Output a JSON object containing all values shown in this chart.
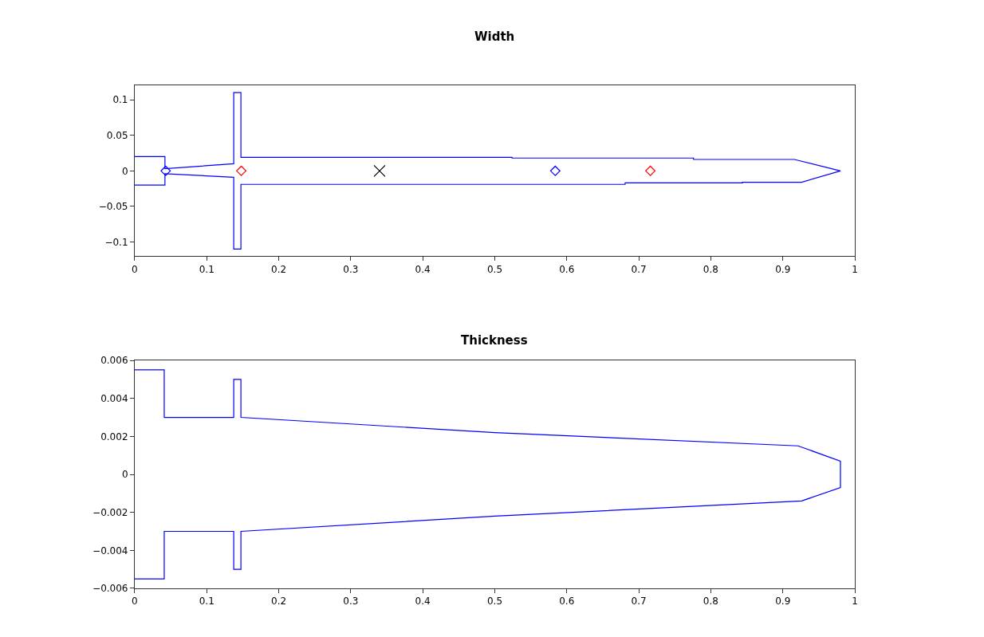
{
  "chart_data": [
    {
      "type": "line",
      "title": "Width",
      "xlim": [
        0,
        1
      ],
      "ylim": [
        -0.12,
        0.12
      ],
      "xticks": [
        0,
        0.1,
        0.2,
        0.3,
        0.4,
        0.5,
        0.6,
        0.7,
        0.8,
        0.9,
        1
      ],
      "yticks": [
        {
          "value": -0.1,
          "label": "−0.1"
        },
        {
          "value": -0.05,
          "label": "−0.05"
        },
        0,
        0.05,
        0.1
      ],
      "series": [
        {
          "color": "#0000ff",
          "marker": "none",
          "line_style": "solid",
          "x": [
            0,
            0.042,
            0.042,
            0.1375,
            0.1375,
            0.1475,
            0.1475,
            0.524,
            0.524,
            0.776,
            0.776,
            0.916,
            0.98,
            0.926,
            0.844,
            0.844,
            0.681,
            0.681,
            0.1475,
            0.1475,
            0.1375,
            0.1375,
            0.042,
            0.042,
            0
          ],
          "values": [
            0.02,
            0.02,
            0.003,
            0.01,
            0.11,
            0.11,
            0.019,
            0.019,
            0.018,
            0.018,
            0.016,
            0.016,
            0,
            -0.016,
            -0.016,
            -0.017,
            -0.017,
            -0.019,
            -0.019,
            -0.11,
            -0.11,
            -0.009,
            -0.004,
            -0.02,
            -0.02
          ]
        },
        {
          "type": "scatter",
          "color": "#0000ff",
          "marker": "diamond",
          "x": [
            0.043,
            0.584
          ],
          "values": [
            0,
            0
          ]
        },
        {
          "type": "scatter",
          "color": "#ff0000",
          "marker": "diamond",
          "x": [
            0.148,
            0.716
          ],
          "values": [
            0,
            0
          ]
        },
        {
          "type": "scatter",
          "color": "#000000",
          "marker": "cross",
          "x": [
            0.34
          ],
          "values": [
            0
          ]
        }
      ]
    },
    {
      "type": "line",
      "title": "Thickness",
      "xlim": [
        0,
        1
      ],
      "ylim": [
        -0.006,
        0.006
      ],
      "xticks": [
        0,
        0.1,
        0.2,
        0.3,
        0.4,
        0.5,
        0.6,
        0.7,
        0.8,
        0.9,
        1
      ],
      "yticks": [
        {
          "value": -0.006,
          "label": "−0.006"
        },
        {
          "value": -0.004,
          "label": "−0.004"
        },
        {
          "value": -0.002,
          "label": "−0.002"
        },
        0,
        0.002,
        0.004,
        0.006
      ],
      "series": [
        {
          "color": "#0000ff",
          "marker": "none",
          "line_style": "solid",
          "x": [
            0,
            0.041,
            0.041,
            0.1375,
            0.1375,
            0.1475,
            0.1475,
            0.5,
            0.921,
            0.98,
            0.98,
            0.926,
            0.5,
            0.1475,
            0.1475,
            0.1375,
            0.1375,
            0.041,
            0.041,
            0
          ],
          "values": [
            0.0055,
            0.0055,
            0.003,
            0.003,
            0.005,
            0.005,
            0.003,
            0.0022,
            0.0015,
            0.0007,
            -0.0007,
            -0.0014,
            -0.0022,
            -0.003,
            -0.005,
            -0.005,
            -0.003,
            -0.003,
            -0.0055,
            -0.0055
          ]
        }
      ]
    }
  ]
}
